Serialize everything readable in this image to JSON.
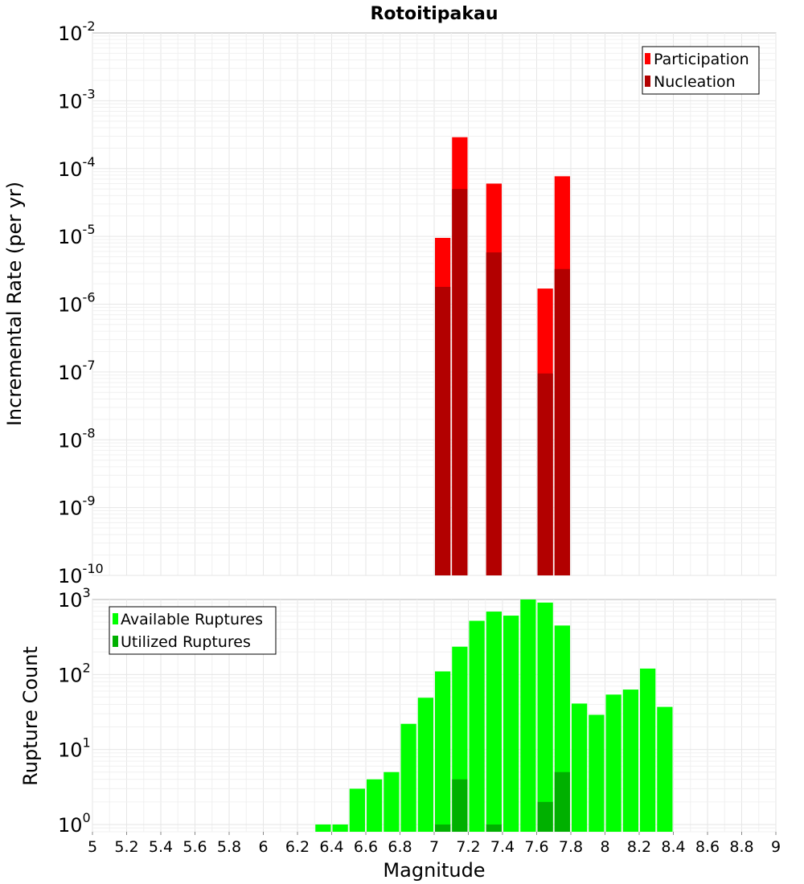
{
  "title": "Rotoitipakau",
  "colors": {
    "participation": "#ff0000",
    "nucleation": "#b20000",
    "available": "#00ff00",
    "utilized": "#00b000"
  },
  "chart_data": [
    {
      "type": "bar",
      "title": "Rotoitipakau",
      "xlabel": "",
      "ylabel": "Incremental Rate (per yr)",
      "yscale": "log",
      "ylim": [
        1e-10,
        0.01
      ],
      "xlim": [
        5,
        9
      ],
      "grid": true,
      "legend_position": "top-right",
      "y_tick_exponents": [
        "-10",
        "-9",
        "-8",
        "-7",
        "-6",
        "-5",
        "-4",
        "-3",
        "-2"
      ],
      "y_tick_base": "10",
      "series": [
        {
          "name": "Participation",
          "color": "#ff0000",
          "points": [
            {
              "x": 7.05,
              "y": 9.5e-06
            },
            {
              "x": 7.15,
              "y": 0.00029
            },
            {
              "x": 7.35,
              "y": 6e-05
            },
            {
              "x": 7.65,
              "y": 1.7e-06
            },
            {
              "x": 7.75,
              "y": 7.7e-05
            }
          ]
        },
        {
          "name": "Nucleation",
          "color": "#b20000",
          "points": [
            {
              "x": 7.05,
              "y": 1.8e-06
            },
            {
              "x": 7.15,
              "y": 5e-05
            },
            {
              "x": 7.35,
              "y": 5.8e-06
            },
            {
              "x": 7.65,
              "y": 9.5e-08
            },
            {
              "x": 7.75,
              "y": 3.3e-06
            }
          ]
        }
      ]
    },
    {
      "type": "bar",
      "xlabel": "Magnitude",
      "ylabel": "Rupture Count",
      "yscale": "log",
      "ylim": [
        0.8,
        1000
      ],
      "xlim": [
        5,
        9
      ],
      "grid": true,
      "legend_position": "top-left",
      "y_tick_exponents": [
        "0",
        "1",
        "2",
        "3"
      ],
      "y_tick_base": "10",
      "x_ticks": [
        "5",
        "5.2",
        "5.4",
        "5.6",
        "5.8",
        "6",
        "6.2",
        "6.4",
        "6.6",
        "6.8",
        "7",
        "7.2",
        "7.4",
        "7.6",
        "7.8",
        "8",
        "8.2",
        "8.4",
        "8.6",
        "8.8",
        "9"
      ],
      "series": [
        {
          "name": "Available Ruptures",
          "color": "#00ff00",
          "points": [
            {
              "x": 6.35,
              "y": 1
            },
            {
              "x": 6.45,
              "y": 1
            },
            {
              "x": 6.55,
              "y": 3
            },
            {
              "x": 6.65,
              "y": 4
            },
            {
              "x": 6.75,
              "y": 5
            },
            {
              "x": 6.85,
              "y": 22
            },
            {
              "x": 6.95,
              "y": 49
            },
            {
              "x": 7.05,
              "y": 110
            },
            {
              "x": 7.15,
              "y": 235
            },
            {
              "x": 7.25,
              "y": 520
            },
            {
              "x": 7.35,
              "y": 690
            },
            {
              "x": 7.45,
              "y": 610
            },
            {
              "x": 7.55,
              "y": 1000
            },
            {
              "x": 7.65,
              "y": 910
            },
            {
              "x": 7.75,
              "y": 450
            },
            {
              "x": 7.85,
              "y": 41
            },
            {
              "x": 7.95,
              "y": 29
            },
            {
              "x": 8.05,
              "y": 54
            },
            {
              "x": 8.15,
              "y": 63
            },
            {
              "x": 8.25,
              "y": 120
            },
            {
              "x": 8.35,
              "y": 37
            }
          ]
        },
        {
          "name": "Utilized Ruptures",
          "color": "#00b000",
          "points": [
            {
              "x": 7.05,
              "y": 1
            },
            {
              "x": 7.15,
              "y": 4
            },
            {
              "x": 7.35,
              "y": 1
            },
            {
              "x": 7.65,
              "y": 2
            },
            {
              "x": 7.75,
              "y": 5
            }
          ]
        }
      ]
    }
  ]
}
